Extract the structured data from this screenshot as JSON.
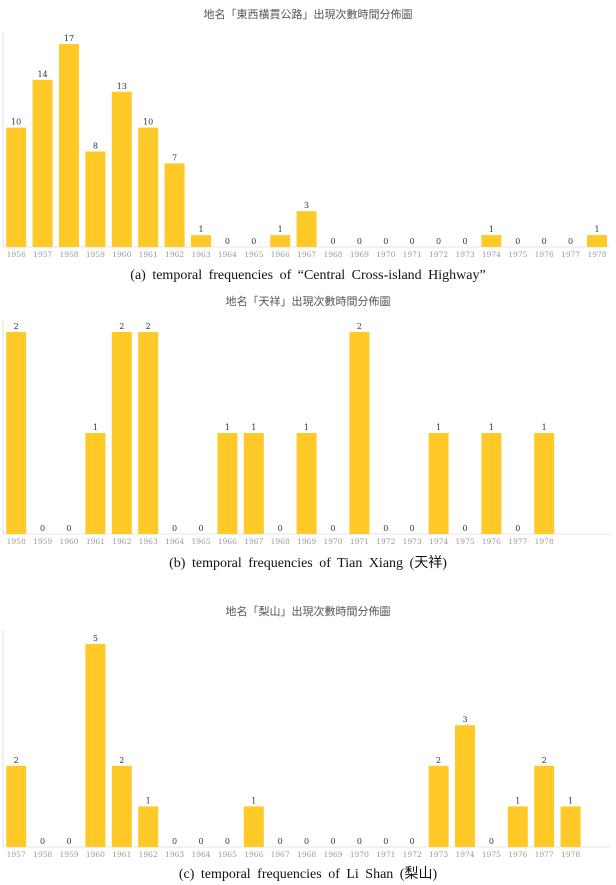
{
  "chart_data": [
    {
      "type": "bar",
      "title": "地名「東西橫貫公路」出現次數時間分佈圖",
      "caption": "(a) temporal frequencies of “Central Cross-island Highway”",
      "categories": [
        "1956",
        "1957",
        "1958",
        "1959",
        "1960",
        "1961",
        "1962",
        "1963",
        "1964",
        "1965",
        "1966",
        "1967",
        "1968",
        "1969",
        "1970",
        "1971",
        "1972",
        "1973",
        "1974",
        "1975",
        "1976",
        "1977",
        "1978"
      ],
      "values": [
        10,
        14,
        17,
        8,
        13,
        10,
        7,
        1,
        0,
        0,
        1,
        3,
        0,
        0,
        0,
        0,
        0,
        0,
        1,
        0,
        0,
        0,
        1
      ],
      "color": "#FFC928"
    },
    {
      "type": "bar",
      "title": "地名「天祥」出現次數時間分佈圖",
      "caption": "(b) temporal frequencies of Tian Xiang (天祥)",
      "categories": [
        "1958",
        "1959",
        "1960",
        "1961",
        "1962",
        "1963",
        "1964",
        "1965",
        "1966",
        "1967",
        "1968",
        "1969",
        "1970",
        "1971",
        "1972",
        "1973",
        "1974",
        "1975",
        "1976",
        "1977",
        "1978"
      ],
      "values": [
        2,
        0,
        0,
        1,
        2,
        2,
        0,
        0,
        1,
        1,
        0,
        1,
        0,
        2,
        0,
        0,
        1,
        0,
        1,
        0,
        1
      ],
      "color": "#FFC928"
    },
    {
      "type": "bar",
      "title": "地名「梨山」出現次數時間分佈圖",
      "caption": "(c) temporal frequencies of Li Shan (梨山)",
      "categories": [
        "1957",
        "1958",
        "1959",
        "1960",
        "1961",
        "1962",
        "1963",
        "1964",
        "1965",
        "1966",
        "1967",
        "1968",
        "1969",
        "1970",
        "1971",
        "1972",
        "1973",
        "1974",
        "1975",
        "1976",
        "1977",
        "1978"
      ],
      "values": [
        2,
        0,
        0,
        5,
        2,
        1,
        0,
        0,
        0,
        1,
        0,
        0,
        0,
        0,
        0,
        0,
        2,
        3,
        0,
        1,
        2,
        1
      ],
      "color": "#FFC928"
    }
  ]
}
